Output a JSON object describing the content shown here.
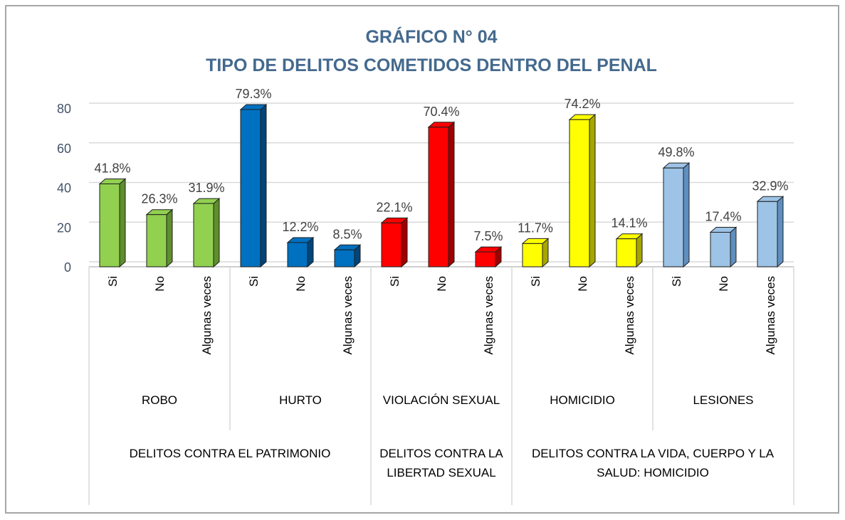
{
  "chart_data": {
    "type": "bar3d",
    "title": "GRÁFICO N° 04",
    "subtitle": "TIPO DE DELITOS COMETIDOS DENTRO DEL PENAL",
    "categories": [
      "Si",
      "No",
      "Algunas veces",
      "Si",
      "No",
      "Algunas veces",
      "Si",
      "No",
      "Algunas veces",
      "Si",
      "No",
      "Algunas veces",
      "Si",
      "No",
      "Algunas veces"
    ],
    "values": [
      41.8,
      26.3,
      31.9,
      79.3,
      12.2,
      8.5,
      22.1,
      70.4,
      7.5,
      11.7,
      74.2,
      14.1,
      49.8,
      17.4,
      32.9
    ],
    "value_labels": [
      "41.8%",
      "26.3%",
      "31.9%",
      "79.3%",
      "12.2%",
      "8.5%",
      "22.1%",
      "70.4%",
      "7.5%",
      "11.7%",
      "74.2%",
      "14.1%",
      "49.8%",
      "17.4%",
      "32.9%"
    ],
    "groups": [
      {
        "name": "ROBO",
        "count": 3,
        "color": "#92d050",
        "side": "#5e8f2c"
      },
      {
        "name": "HURTO",
        "count": 3,
        "color": "#0070c0",
        "side": "#00457a"
      },
      {
        "name": "VIOLACIÓN SEXUAL",
        "count": 3,
        "color": "#ff0000",
        "side": "#a00000"
      },
      {
        "name": "HOMICIDIO",
        "count": 3,
        "color": "#ffff00",
        "side": "#a6a600"
      },
      {
        "name": "LESIONES",
        "count": 3,
        "color": "#9dc3e6",
        "side": "#5f8fbf"
      }
    ],
    "supergroups": [
      {
        "name": "DELITOS CONTRA EL PATRIMONIO",
        "count": 2
      },
      {
        "name": "DELITOS CONTRA LA LIBERTAD SEXUAL",
        "count": 1
      },
      {
        "name": "DELITOS CONTRA LA VIDA, CUERPO Y LA SALUD: HOMICIDIO",
        "count": 2
      }
    ],
    "ylim": [
      0,
      80
    ],
    "yticks": [
      0,
      20,
      40,
      60,
      80
    ],
    "grid": true
  }
}
